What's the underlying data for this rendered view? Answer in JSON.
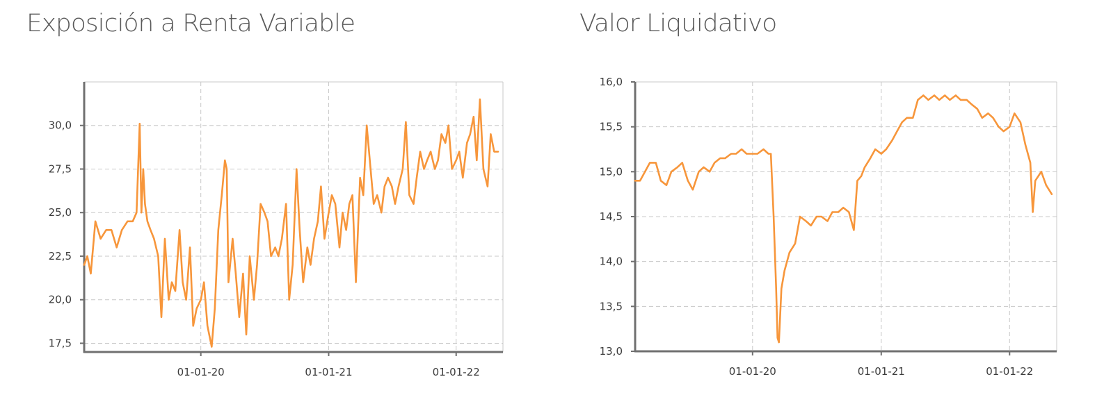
{
  "colors": {
    "series": "#f7963b",
    "axis": "#707070",
    "grid": "#c8c8c8",
    "title": "#5a5a5a"
  },
  "chart_data": [
    {
      "type": "line",
      "title": "Exposición a Renta Variable",
      "xlabel": "",
      "ylabel": "",
      "x_ticks": [
        {
          "date": "2020-01-01",
          "label": "01-01-20"
        },
        {
          "date": "2021-01-01",
          "label": "01-01-21"
        },
        {
          "date": "2022-01-01",
          "label": "01-01-22"
        }
      ],
      "y_ticks": [
        "17,5",
        "20,0",
        "22,5",
        "25,0",
        "27,5",
        "30,0"
      ],
      "y_tick_values": [
        17.5,
        20.0,
        22.5,
        25.0,
        27.5,
        30.0
      ],
      "xlim": [
        "2019-02-01",
        "2022-05-15"
      ],
      "ylim": [
        17.0,
        32.5
      ],
      "grid": true,
      "series": [
        {
          "x": [
            "2019-02-01",
            "2019-02-10",
            "2019-02-20",
            "2019-03-05",
            "2019-03-20",
            "2019-04-05",
            "2019-04-20",
            "2019-05-05",
            "2019-05-20",
            "2019-06-05",
            "2019-06-20",
            "2019-07-01",
            "2019-07-10",
            "2019-07-15",
            "2019-07-20",
            "2019-07-25",
            "2019-08-01",
            "2019-08-10",
            "2019-08-20",
            "2019-09-01",
            "2019-09-10",
            "2019-09-20",
            "2019-10-01",
            "2019-10-10",
            "2019-10-20",
            "2019-11-01",
            "2019-11-10",
            "2019-11-20",
            "2019-12-01",
            "2019-12-10",
            "2019-12-20",
            "2020-01-01",
            "2020-01-10",
            "2020-01-20",
            "2020-02-01",
            "2020-02-10",
            "2020-02-20",
            "2020-03-01",
            "2020-03-10",
            "2020-03-15",
            "2020-03-20",
            "2020-04-01",
            "2020-04-10",
            "2020-04-20",
            "2020-05-01",
            "2020-05-10",
            "2020-05-20",
            "2020-06-01",
            "2020-06-10",
            "2020-06-20",
            "2020-07-01",
            "2020-07-10",
            "2020-07-20",
            "2020-08-01",
            "2020-08-10",
            "2020-08-20",
            "2020-09-01",
            "2020-09-10",
            "2020-09-20",
            "2020-10-01",
            "2020-10-10",
            "2020-10-20",
            "2020-11-01",
            "2020-11-10",
            "2020-11-20",
            "2020-12-01",
            "2020-12-10",
            "2020-12-20",
            "2021-01-01",
            "2021-01-10",
            "2021-01-20",
            "2021-02-01",
            "2021-02-10",
            "2021-02-20",
            "2021-03-01",
            "2021-03-10",
            "2021-03-20",
            "2021-04-01",
            "2021-04-10",
            "2021-04-20",
            "2021-05-01",
            "2021-05-10",
            "2021-05-20",
            "2021-06-01",
            "2021-06-10",
            "2021-06-20",
            "2021-07-01",
            "2021-07-10",
            "2021-07-20",
            "2021-08-01",
            "2021-08-10",
            "2021-08-20",
            "2021-09-01",
            "2021-09-10",
            "2021-09-20",
            "2021-10-01",
            "2021-10-10",
            "2021-10-20",
            "2021-11-01",
            "2021-11-10",
            "2021-11-20",
            "2021-12-01",
            "2021-12-10",
            "2021-12-20",
            "2022-01-01",
            "2022-01-10",
            "2022-01-20",
            "2022-02-01",
            "2022-02-10",
            "2022-02-20",
            "2022-03-01",
            "2022-03-10",
            "2022-03-20",
            "2022-04-01",
            "2022-04-10",
            "2022-04-20",
            "2022-05-01"
          ],
          "y": [
            22.0,
            22.5,
            21.5,
            24.5,
            23.5,
            24.0,
            24.0,
            23.0,
            24.0,
            24.5,
            24.5,
            25.0,
            30.1,
            25.0,
            27.5,
            25.5,
            24.5,
            24.0,
            23.5,
            22.5,
            19.0,
            23.5,
            20.0,
            21.0,
            20.5,
            24.0,
            21.0,
            20.0,
            23.0,
            18.5,
            19.5,
            20.0,
            21.0,
            18.5,
            17.3,
            19.5,
            24.0,
            26.0,
            28.0,
            27.5,
            21.0,
            23.5,
            21.5,
            19.0,
            21.5,
            18.0,
            22.5,
            20.0,
            22.0,
            25.5,
            25.0,
            24.5,
            22.5,
            23.0,
            22.5,
            23.5,
            25.5,
            20.0,
            22.0,
            27.5,
            24.0,
            21.0,
            23.0,
            22.0,
            23.5,
            24.5,
            26.5,
            23.5,
            25.0,
            26.0,
            25.5,
            23.0,
            25.0,
            24.0,
            25.5,
            26.0,
            21.0,
            27.0,
            26.0,
            30.0,
            27.5,
            25.5,
            26.0,
            25.0,
            26.5,
            27.0,
            26.5,
            25.5,
            26.5,
            27.5,
            30.2,
            26.0,
            25.5,
            27.0,
            28.5,
            27.5,
            28.0,
            28.5,
            27.5,
            28.0,
            29.5,
            29.0,
            30.0,
            27.5,
            28.0,
            28.5,
            27.0,
            29.0,
            29.5,
            30.5,
            28.0,
            31.5,
            27.5,
            26.5,
            29.5,
            28.5,
            28.5
          ]
        }
      ]
    },
    {
      "type": "line",
      "title": "Valor Liquidativo",
      "xlabel": "",
      "ylabel": "",
      "x_ticks": [
        {
          "date": "2020-01-01",
          "label": "01-01-20"
        },
        {
          "date": "2021-01-01",
          "label": "01-01-21"
        },
        {
          "date": "2022-01-01",
          "label": "01-01-22"
        }
      ],
      "y_ticks": [
        "13,0",
        "13,5",
        "14,0",
        "14,5",
        "15,0",
        "15,5",
        "16,0"
      ],
      "y_tick_values": [
        13.0,
        13.5,
        14.0,
        14.5,
        15.0,
        15.5,
        16.0
      ],
      "xlim": [
        "2019-02-01",
        "2022-05-15"
      ],
      "ylim": [
        13.0,
        16.0
      ],
      "grid": true,
      "series": [
        {
          "x": [
            "2019-02-01",
            "2019-02-15",
            "2019-03-01",
            "2019-03-15",
            "2019-04-01",
            "2019-04-15",
            "2019-05-01",
            "2019-05-15",
            "2019-06-01",
            "2019-06-15",
            "2019-07-01",
            "2019-07-15",
            "2019-08-01",
            "2019-08-15",
            "2019-09-01",
            "2019-09-15",
            "2019-10-01",
            "2019-10-15",
            "2019-11-01",
            "2019-11-15",
            "2019-12-01",
            "2019-12-15",
            "2020-01-01",
            "2020-01-15",
            "2020-02-01",
            "2020-02-15",
            "2020-02-22",
            "2020-03-01",
            "2020-03-08",
            "2020-03-12",
            "2020-03-16",
            "2020-03-23",
            "2020-04-01",
            "2020-04-15",
            "2020-05-01",
            "2020-05-15",
            "2020-06-01",
            "2020-06-15",
            "2020-07-01",
            "2020-07-15",
            "2020-08-01",
            "2020-08-15",
            "2020-09-01",
            "2020-09-15",
            "2020-10-01",
            "2020-10-15",
            "2020-10-25",
            "2020-11-05",
            "2020-11-15",
            "2020-12-01",
            "2020-12-15",
            "2021-01-01",
            "2021-01-15",
            "2021-02-01",
            "2021-02-15",
            "2021-03-01",
            "2021-03-15",
            "2021-04-01",
            "2021-04-15",
            "2021-05-01",
            "2021-05-15",
            "2021-06-01",
            "2021-06-15",
            "2021-07-01",
            "2021-07-15",
            "2021-08-01",
            "2021-08-15",
            "2021-09-01",
            "2021-09-15",
            "2021-10-01",
            "2021-10-15",
            "2021-11-01",
            "2021-11-15",
            "2021-12-01",
            "2021-12-15",
            "2022-01-01",
            "2022-01-15",
            "2022-02-01",
            "2022-02-15",
            "2022-03-01",
            "2022-03-08",
            "2022-03-15",
            "2022-04-01",
            "2022-04-15",
            "2022-05-01"
          ],
          "y": [
            14.9,
            14.9,
            15.0,
            15.1,
            15.1,
            14.9,
            14.85,
            15.0,
            15.05,
            15.1,
            14.9,
            14.8,
            15.0,
            15.05,
            15.0,
            15.1,
            15.15,
            15.15,
            15.2,
            15.2,
            15.25,
            15.2,
            15.2,
            15.2,
            15.25,
            15.2,
            15.2,
            14.5,
            13.7,
            13.15,
            13.1,
            13.7,
            13.9,
            14.1,
            14.2,
            14.5,
            14.45,
            14.4,
            14.5,
            14.5,
            14.45,
            14.55,
            14.55,
            14.6,
            14.55,
            14.35,
            14.9,
            14.95,
            15.05,
            15.15,
            15.25,
            15.2,
            15.25,
            15.35,
            15.45,
            15.55,
            15.6,
            15.6,
            15.8,
            15.85,
            15.8,
            15.85,
            15.8,
            15.85,
            15.8,
            15.85,
            15.8,
            15.8,
            15.75,
            15.7,
            15.6,
            15.65,
            15.6,
            15.5,
            15.45,
            15.5,
            15.65,
            15.55,
            15.3,
            15.1,
            14.55,
            14.9,
            15.0,
            14.85,
            14.75
          ]
        }
      ]
    }
  ]
}
